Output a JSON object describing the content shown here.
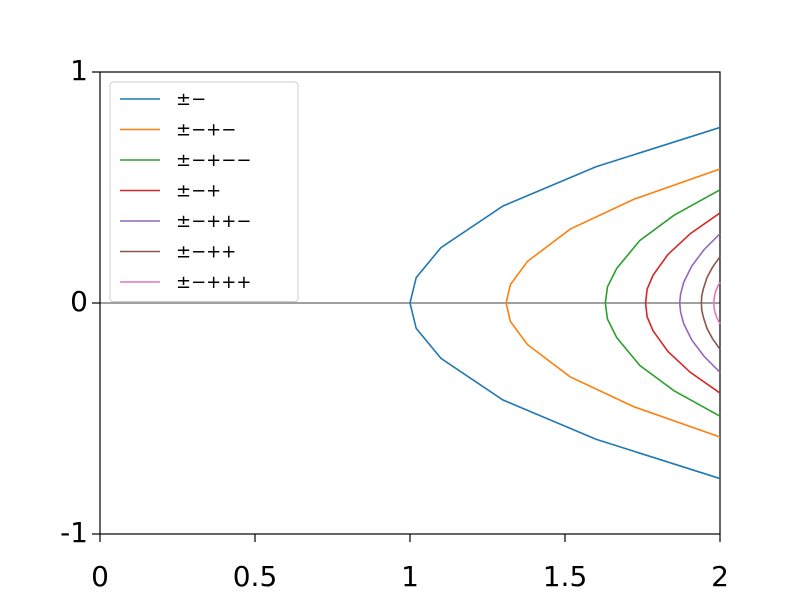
{
  "chart_data": {
    "type": "line",
    "xlim": [
      0,
      2
    ],
    "ylim": [
      -1,
      1
    ],
    "xticks": [
      0,
      0.5,
      1,
      1.5,
      2
    ],
    "yticks": [
      -1,
      0,
      1
    ],
    "hline": 0,
    "legend": "upper left",
    "series": [
      {
        "name": "±−",
        "color": "#1f77b4",
        "x": [
          2,
          1.6,
          1.3,
          1.1,
          1.02,
          1,
          1.02,
          1.1,
          1.3,
          1.6,
          2
        ],
        "values": [
          0.76,
          0.59,
          0.42,
          0.24,
          0.11,
          0,
          -0.11,
          -0.24,
          -0.42,
          -0.59,
          -0.76
        ]
      },
      {
        "name": "±−+−",
        "color": "#ff7f0e",
        "x": [
          2,
          1.724,
          1.517,
          1.379,
          1.324,
          1.31,
          1.324,
          1.379,
          1.517,
          1.724,
          2
        ],
        "values": [
          0.58,
          0.45,
          0.32,
          0.18,
          0.08,
          0,
          -0.08,
          -0.18,
          -0.32,
          -0.45,
          -0.58
        ]
      },
      {
        "name": "±−+−−",
        "color": "#2ca02c",
        "x": [
          2,
          1.852,
          1.741,
          1.667,
          1.637,
          1.63,
          1.637,
          1.667,
          1.741,
          1.852,
          2
        ],
        "values": [
          0.49,
          0.38,
          0.27,
          0.15,
          0.07,
          0,
          -0.07,
          -0.15,
          -0.27,
          -0.38,
          -0.49
        ]
      },
      {
        "name": "±−+",
        "color": "#d62728",
        "x": [
          2,
          1.904,
          1.832,
          1.784,
          1.765,
          1.76,
          1.765,
          1.784,
          1.832,
          1.904,
          2
        ],
        "values": [
          0.39,
          0.3,
          0.21,
          0.12,
          0.06,
          0,
          -0.06,
          -0.12,
          -0.21,
          -0.3,
          -0.39
        ]
      },
      {
        "name": "±−++−",
        "color": "#9467bd",
        "x": [
          2,
          1.948,
          1.909,
          1.883,
          1.873,
          1.87,
          1.873,
          1.883,
          1.909,
          1.948,
          2
        ],
        "values": [
          0.3,
          0.23,
          0.16,
          0.09,
          0.04,
          0,
          -0.04,
          -0.09,
          -0.16,
          -0.23,
          -0.3
        ]
      },
      {
        "name": "±−++",
        "color": "#8c564b",
        "x": [
          2,
          1.976,
          1.958,
          1.946,
          1.941,
          1.94,
          1.941,
          1.946,
          1.958,
          1.976,
          2
        ],
        "values": [
          0.2,
          0.155,
          0.11,
          0.06,
          0.03,
          0,
          -0.03,
          -0.06,
          -0.11,
          -0.155,
          -0.2
        ]
      },
      {
        "name": "±−+++",
        "color": "#e377c2",
        "x": [
          2,
          1.992,
          1.986,
          1.982,
          1.9804,
          1.98,
          1.9804,
          1.982,
          1.986,
          1.992,
          2
        ],
        "values": [
          0.09,
          0.07,
          0.05,
          0.03,
          0.01,
          0,
          -0.01,
          -0.03,
          -0.05,
          -0.07,
          -0.09
        ]
      }
    ]
  }
}
